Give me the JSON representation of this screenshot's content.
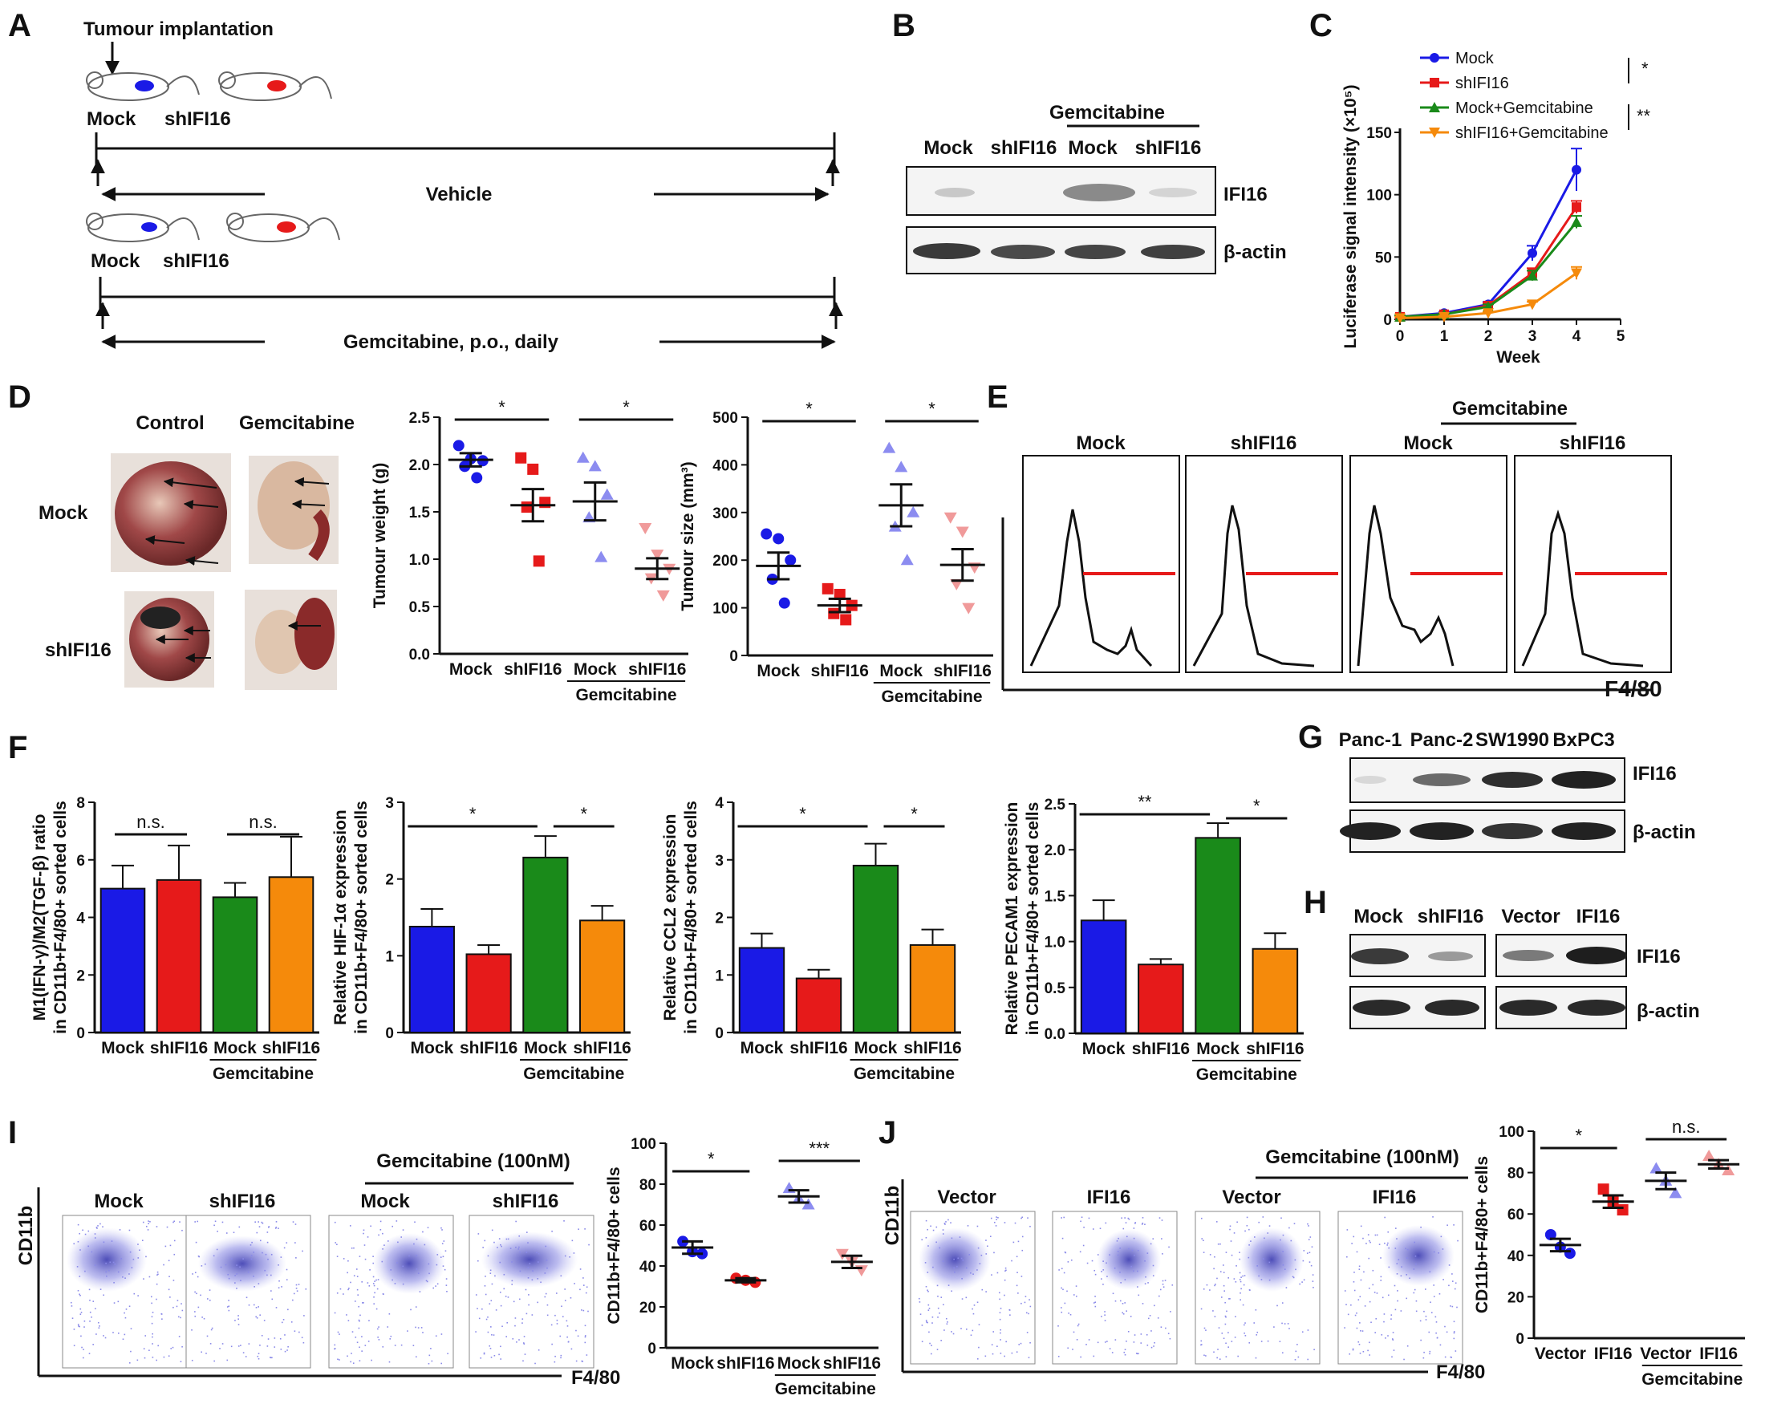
{
  "panel_letters": {
    "a": "A",
    "b": "B",
    "c": "C",
    "d": "D",
    "e": "E",
    "f": "F",
    "g": "G",
    "h": "H",
    "i": "I",
    "j": "J"
  },
  "panelA": {
    "implant": "Tumour implantation",
    "mock": "Mock",
    "sh": "shIFI16",
    "vehicle": "Vehicle",
    "gem_daily": "Gemcitabine, p.o., daily"
  },
  "panelB": {
    "gem": "Gemcitabine",
    "lanes": [
      "Mock",
      "shIFI16",
      "Mock",
      "shIFI16"
    ],
    "ifi16": "IFI16",
    "actin": "β-actin"
  },
  "panelD": {
    "control": "Control",
    "gem": "Gemcitabine",
    "mock": "Mock",
    "sh": "shIFI16"
  },
  "panelE": {
    "gem": "Gemcitabine",
    "titles": [
      "Mock",
      "shIFI16",
      "Mock",
      "shIFI16"
    ],
    "xlabel": "F4/80"
  },
  "panelG": {
    "lines": [
      "Panc-1",
      "Panc-2",
      "SW1990",
      "BxPC3"
    ],
    "ifi16": "IFI16",
    "actin": "β-actin"
  },
  "panelH": {
    "lanes": [
      "Mock",
      "shIFI16",
      "Vector",
      "IFI16"
    ],
    "ifi16": "IFI16",
    "actin": "β-actin"
  },
  "panelI": {
    "gem": "Gemcitabine (100nM)",
    "titles": [
      "Mock",
      "shIFI16",
      "Mock",
      "shIFI16"
    ],
    "ylabel": "CD11b",
    "xlabel": "F4/80"
  },
  "panelJ": {
    "gem": "Gemcitabine (100nM)",
    "titles": [
      "Vector",
      "IFI16",
      "Vector",
      "IFI16"
    ],
    "ylabel": "CD11b",
    "xlabel": "F4/80"
  },
  "colors": {
    "blue": "#1a1ae6",
    "red": "#e61a1a",
    "green": "#1a8a1a",
    "orange": "#f58a0b",
    "pink": "#f09a9a",
    "lightblue": "#8c8cf0"
  },
  "chart_data": [
    {
      "id": "C",
      "type": "line",
      "xlabel": "Week",
      "ylabel": "Luciferase signal intensity (×10⁵)",
      "x": [
        0,
        1,
        2,
        3,
        4
      ],
      "xlim": [
        0,
        5
      ],
      "ylim": [
        0,
        150
      ],
      "yticks": [
        0,
        50,
        100,
        150
      ],
      "series": [
        {
          "name": "Mock",
          "values": [
            2,
            5,
            12,
            53,
            120
          ],
          "err": [
            1,
            1,
            2,
            6,
            17
          ]
        },
        {
          "name": "shIFI16",
          "values": [
            2,
            4,
            11,
            37,
            90
          ],
          "err": [
            1,
            1,
            2,
            4,
            5
          ]
        },
        {
          "name": "Mock+Gemcitabine",
          "values": [
            2,
            4,
            10,
            35,
            78
          ],
          "err": [
            1,
            1,
            2,
            4,
            5
          ]
        },
        {
          "name": "shIFI16+Gemcitabine",
          "values": [
            1,
            2,
            5,
            12,
            37
          ],
          "err": [
            1,
            1,
            1,
            2,
            5
          ]
        }
      ],
      "significance": [
        "*",
        "**"
      ]
    },
    {
      "id": "D-weight",
      "type": "scatter",
      "ylabel": "Tumour weight (g)",
      "ylim": [
        0,
        2.5
      ],
      "yticks": [
        "0.0",
        "0.5",
        "1.0",
        "1.5",
        "2.0",
        "2.5"
      ],
      "categories": [
        "Mock",
        "shIFI16",
        "Mock",
        "shIFI16"
      ],
      "group_label": "Gemcitabine",
      "groups": [
        {
          "points": [
            2.2,
            2.06,
            2.04,
            1.98,
            1.86
          ],
          "mean": 2.05,
          "sem": 0.07
        },
        {
          "points": [
            2.07,
            1.95,
            1.6,
            1.55,
            0.98
          ],
          "mean": 1.57,
          "sem": 0.17
        },
        {
          "points": [
            2.07,
            1.98,
            1.68,
            1.44,
            1.02
          ],
          "mean": 1.61,
          "sem": 0.2
        },
        {
          "points": [
            1.33,
            1.05,
            0.9,
            0.8,
            0.62
          ],
          "mean": 0.9,
          "sem": 0.11
        }
      ],
      "significance": [
        "*",
        "*"
      ]
    },
    {
      "id": "D-size",
      "type": "scatter",
      "ylabel": "Tumour size (mm³)",
      "ylim": [
        0,
        500
      ],
      "yticks": [
        0,
        100,
        200,
        300,
        400,
        500
      ],
      "categories": [
        "Mock",
        "shIFI16",
        "Mock",
        "shIFI16"
      ],
      "group_label": "Gemcitabine",
      "groups": [
        {
          "points": [
            255,
            245,
            200,
            160,
            110
          ],
          "mean": 188,
          "sem": 28
        },
        {
          "points": [
            140,
            128,
            105,
            88,
            75
          ],
          "mean": 105,
          "sem": 14
        },
        {
          "points": [
            435,
            395,
            300,
            270,
            200
          ],
          "mean": 315,
          "sem": 44
        },
        {
          "points": [
            290,
            260,
            185,
            150,
            100
          ],
          "mean": 190,
          "sem": 33
        }
      ],
      "significance": [
        "*",
        "*"
      ]
    },
    {
      "id": "F1",
      "type": "bar",
      "ylabel": "M1(IFN-γ)/M2(TGF-β) ratio in CD11b+F4/80+ sorted cells",
      "ylim": [
        0,
        8
      ],
      "yticks": [
        0,
        2,
        4,
        6,
        8
      ],
      "categories": [
        "Mock",
        "shIFI16",
        "Mock",
        "shIFI16"
      ],
      "group_label": "Gemcitabine",
      "values": [
        5.0,
        5.3,
        4.7,
        5.4
      ],
      "err": [
        0.8,
        1.2,
        0.5,
        1.4
      ],
      "significance": [
        "n.s.",
        "n.s."
      ]
    },
    {
      "id": "F2",
      "type": "bar",
      "ylabel": "Relative HIF-1α expression in CD11b+F4/80+ sorted cells",
      "ylim": [
        0,
        3
      ],
      "yticks": [
        0,
        1,
        2,
        3
      ],
      "categories": [
        "Mock",
        "shIFI16",
        "Mock",
        "shIFI16"
      ],
      "group_label": "Gemcitabine",
      "values": [
        1.38,
        1.02,
        2.28,
        1.46
      ],
      "err": [
        0.23,
        0.12,
        0.28,
        0.19
      ],
      "significance": [
        "*",
        "*"
      ]
    },
    {
      "id": "F3",
      "type": "bar",
      "ylabel": "Relative CCL2 expression in CD11b+F4/80+ sorted cells",
      "ylim": [
        0,
        4
      ],
      "yticks": [
        0,
        1,
        2,
        3,
        4
      ],
      "categories": [
        "Mock",
        "shIFI16",
        "Mock",
        "shIFI16"
      ],
      "group_label": "Gemcitabine",
      "values": [
        1.47,
        0.94,
        2.9,
        1.52
      ],
      "err": [
        0.25,
        0.15,
        0.38,
        0.27
      ],
      "significance": [
        "*",
        "*"
      ]
    },
    {
      "id": "F4",
      "type": "bar",
      "ylabel": "Relative PECAM1 expression in CD11b+F4/80+ sorted cells",
      "ylim": [
        0,
        2.5
      ],
      "yticks": [
        "0.0",
        "0.5",
        "1.0",
        "1.5",
        "2.0",
        "2.5"
      ],
      "categories": [
        "Mock",
        "shIFI16",
        "Mock",
        "shIFI16"
      ],
      "group_label": "Gemcitabine",
      "values": [
        1.23,
        0.75,
        2.13,
        0.92
      ],
      "err": [
        0.22,
        0.06,
        0.16,
        0.17
      ],
      "significance": [
        "**",
        "*"
      ]
    },
    {
      "id": "I",
      "type": "scatter",
      "ylabel": "CD11b+F4/80+ cells",
      "ylim": [
        0,
        100
      ],
      "yticks": [
        0,
        20,
        40,
        60,
        80,
        100
      ],
      "categories": [
        "Mock",
        "shIFI16",
        "Mock",
        "shIFI16"
      ],
      "group_label": "Gemcitabine",
      "groups": [
        {
          "points": [
            52,
            47,
            46
          ],
          "mean": 49,
          "sem": 3
        },
        {
          "points": [
            34,
            33,
            32
          ],
          "mean": 33,
          "sem": 1
        },
        {
          "points": [
            78,
            73,
            70
          ],
          "mean": 74,
          "sem": 3
        },
        {
          "points": [
            46,
            42,
            38
          ],
          "mean": 42,
          "sem": 3
        }
      ],
      "significance": [
        "*",
        "***"
      ]
    },
    {
      "id": "J",
      "type": "scatter",
      "ylabel": "CD11b+F4/80+ cells",
      "ylim": [
        0,
        100
      ],
      "yticks": [
        0,
        20,
        40,
        60,
        80,
        100
      ],
      "categories": [
        "Vector",
        "IFI16",
        "Vector",
        "IFI16"
      ],
      "group_label": "Gemcitabine",
      "groups": [
        {
          "points": [
            50,
            44,
            41
          ],
          "mean": 45,
          "sem": 3
        },
        {
          "points": [
            72,
            66,
            62
          ],
          "mean": 66,
          "sem": 3
        },
        {
          "points": [
            82,
            76,
            70
          ],
          "mean": 76,
          "sem": 4
        },
        {
          "points": [
            88,
            84,
            81
          ],
          "mean": 84,
          "sem": 2
        }
      ],
      "significance": [
        "*",
        "n.s."
      ]
    }
  ]
}
